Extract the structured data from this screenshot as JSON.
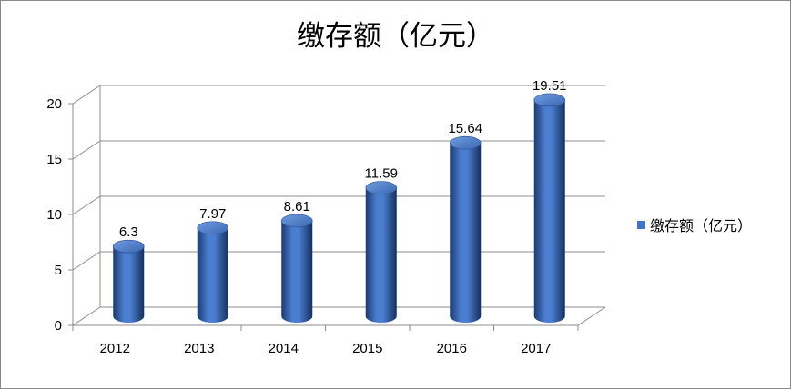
{
  "chart_data": {
    "type": "bar",
    "style": "3d-cylinder",
    "title": "缴存额（亿元）",
    "categories": [
      "2012",
      "2013",
      "2014",
      "2015",
      "2016",
      "2017"
    ],
    "series": [
      {
        "name": "缴存额（亿元）",
        "values": [
          6.3,
          7.97,
          8.61,
          11.59,
          15.64,
          19.51
        ]
      }
    ],
    "data_labels": [
      "6.3",
      "7.97",
      "8.61",
      "11.59",
      "15.64",
      "19.51"
    ],
    "yticks": [
      0,
      5,
      10,
      15,
      20
    ],
    "ylim": [
      0,
      20
    ],
    "xlabel": "",
    "ylabel": "",
    "grid": true,
    "legend_position": "right",
    "colors": {
      "bar": "#4472c4",
      "bar_dark": "#1f3f7a",
      "grid": "#8c8c8c"
    }
  }
}
